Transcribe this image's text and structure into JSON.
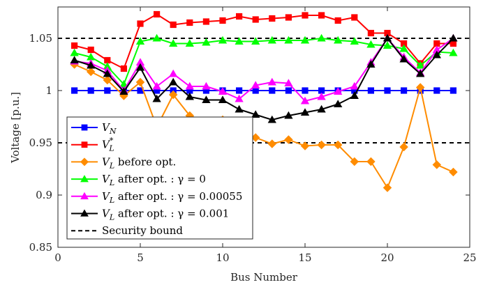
{
  "chart_data": {
    "type": "line",
    "xlabel": "Bus Number",
    "ylabel": "Voltage [p.u.]",
    "xlim": [
      0,
      25
    ],
    "ylim": [
      0.85,
      1.08
    ],
    "xticks": [
      0,
      5,
      10,
      15,
      20,
      25
    ],
    "xtick_labels": [
      "0",
      "5",
      "10",
      "15",
      "20",
      "25"
    ],
    "yticks": [
      0.85,
      0.9,
      0.95,
      1.0,
      1.05
    ],
    "ytick_labels": [
      "0.85",
      "0.9",
      "0.95",
      "1",
      "1.05"
    ],
    "grid": false,
    "legend_position": "lower-left",
    "x": [
      1,
      2,
      3,
      4,
      5,
      6,
      7,
      8,
      9,
      10,
      11,
      12,
      13,
      14,
      15,
      16,
      17,
      18,
      19,
      20,
      21,
      22,
      23,
      24
    ],
    "series": [
      {
        "name": "V_N",
        "legend": {
          "main": "V",
          "sub": "N",
          "sup": "",
          "tail": ""
        },
        "color": "#0000ff",
        "marker": "square",
        "values": [
          1.0,
          1.0,
          1.0,
          1.0,
          1.0,
          1.0,
          1.0,
          1.0,
          1.0,
          1.0,
          1.0,
          1.0,
          1.0,
          1.0,
          1.0,
          1.0,
          1.0,
          1.0,
          1.0,
          1.0,
          1.0,
          1.0,
          1.0,
          1.0
        ]
      },
      {
        "name": "V_L^*",
        "legend": {
          "main": "V",
          "sub": "L",
          "sup": "*",
          "tail": ""
        },
        "color": "#ff0000",
        "marker": "square",
        "values": [
          1.043,
          1.039,
          1.029,
          1.021,
          1.064,
          1.073,
          1.063,
          1.065,
          1.066,
          1.067,
          1.071,
          1.068,
          1.069,
          1.07,
          1.072,
          1.072,
          1.067,
          1.07,
          1.055,
          1.055,
          1.045,
          1.026,
          1.045,
          1.045
        ]
      },
      {
        "name": "V_L before opt.",
        "legend": {
          "main": "V",
          "sub": "L",
          "sup": "",
          "tail": " before opt."
        },
        "color": "#ff8c00",
        "marker": "diamond",
        "values": [
          1.025,
          1.018,
          1.01,
          0.995,
          1.008,
          0.965,
          0.996,
          0.976,
          0.97,
          0.972,
          0.96,
          0.955,
          0.949,
          0.953,
          0.947,
          0.948,
          0.948,
          0.932,
          0.932,
          0.907,
          0.946,
          1.003,
          0.929,
          0.922
        ]
      },
      {
        "name": "V_L after opt. : γ = 0",
        "legend": {
          "main": "V",
          "sub": "L",
          "sup": "",
          "tail": " after opt. : γ = 0"
        },
        "color": "#00ff00",
        "marker": "triangle",
        "values": [
          1.036,
          1.032,
          1.023,
          1.006,
          1.047,
          1.05,
          1.045,
          1.045,
          1.046,
          1.048,
          1.047,
          1.047,
          1.048,
          1.048,
          1.048,
          1.05,
          1.048,
          1.047,
          1.044,
          1.043,
          1.04,
          1.024,
          1.037,
          1.036
        ]
      },
      {
        "name": "V_L after opt. : γ = 0.00055",
        "legend": {
          "main": "V",
          "sub": "L",
          "sup": "",
          "tail": " after opt. : γ = 0.00055"
        },
        "color": "#ff00ff",
        "marker": "triangle",
        "values": [
          1.028,
          1.026,
          1.019,
          1.0,
          1.027,
          1.004,
          1.016,
          1.004,
          1.004,
          0.999,
          0.992,
          1.005,
          1.008,
          1.007,
          0.99,
          0.994,
          0.999,
          1.004,
          1.027,
          1.05,
          1.032,
          1.017,
          1.039,
          1.05
        ]
      },
      {
        "name": "V_L after opt. : γ = 0.001",
        "legend": {
          "main": "V",
          "sub": "L",
          "sup": "",
          "tail": " after opt. : γ = 0.001"
        },
        "color": "#000000",
        "marker": "triangle",
        "values": [
          1.029,
          1.024,
          1.016,
          0.999,
          1.022,
          0.992,
          1.008,
          0.994,
          0.991,
          0.991,
          0.982,
          0.977,
          0.972,
          0.976,
          0.979,
          0.982,
          0.987,
          0.995,
          1.025,
          1.05,
          1.03,
          1.016,
          1.034,
          1.05
        ]
      }
    ],
    "reference_lines": [
      {
        "name": "Security bound",
        "color": "#000000",
        "style": "dashed",
        "y": 1.05
      },
      {
        "name": "Security bound",
        "color": "#000000",
        "style": "dashed",
        "y": 0.95
      }
    ],
    "legend_entries": [
      {
        "main": "V",
        "sub": "N",
        "sup": "",
        "tail": ""
      },
      {
        "main": "V",
        "sub": "L",
        "sup": "*",
        "tail": ""
      },
      {
        "main": "V",
        "sub": "L",
        "sup": "",
        "tail": " before opt."
      },
      {
        "main": "V",
        "sub": "L",
        "sup": "",
        "tail": " after opt. : γ = 0"
      },
      {
        "main": "V",
        "sub": "L",
        "sup": "",
        "tail": " after opt. : γ = 0.00055"
      },
      {
        "main": "V",
        "sub": "L",
        "sup": "",
        "tail": " after opt. : γ = 0.001"
      },
      {
        "main": "",
        "sub": "",
        "sup": "",
        "tail": "Security bound"
      }
    ]
  }
}
